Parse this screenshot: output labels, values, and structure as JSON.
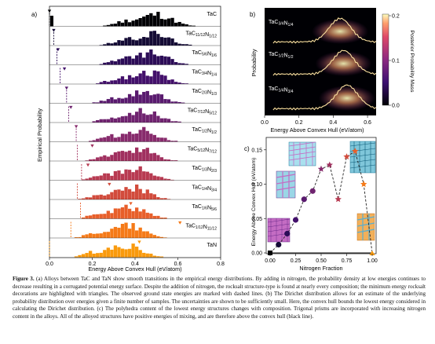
{
  "panels": {
    "a": {
      "label": "a)",
      "ylabel": "Empirical Probability",
      "xlabel": "Energy Above Convex Hull (eV/atom)",
      "xticks": [
        "0.0",
        "0.2",
        "0.4",
        "0.6",
        "0.8"
      ],
      "rows": [
        {
          "label": "TaC",
          "color": "#000004"
        },
        {
          "label": "TaC11/12N1/12",
          "color": "#140b35"
        },
        {
          "label": "TaC5/6N1/6",
          "color": "#2c0c57"
        },
        {
          "label": "TaC3/4N1/4",
          "color": "#43106b"
        },
        {
          "label": "TaC2/3N1/3",
          "color": "#591a6e"
        },
        {
          "label": "TaC7/12N5/12",
          "color": "#6f236f"
        },
        {
          "label": "TaC1/2N1/2",
          "color": "#872a6c"
        },
        {
          "label": "TaC5/12N7/12",
          "color": "#a0305f"
        },
        {
          "label": "TaC1/3N2/3",
          "color": "#b83a51"
        },
        {
          "label": "TaC1/4N3/4",
          "color": "#d24b3c"
        },
        {
          "label": "TaC1/6N5/6",
          "color": "#e85f2a"
        },
        {
          "label": "TaC1/12N11/12",
          "color": "#f57a18"
        },
        {
          "label": "TaN",
          "color": "#f99a0d"
        }
      ]
    },
    "b": {
      "label": "b)",
      "ylabel": "Probability",
      "xlabel": "Energy Above Convex Hull (eV/atom)",
      "xticks": [
        "0.0",
        "0.2",
        "0.4",
        "0.6"
      ],
      "curves": [
        "TaC3/4N1/4",
        "TaC1/2N1/2",
        "TaC1/4N3/4"
      ],
      "colorbar": {
        "label": "Posterior Probability Mass",
        "ticks": [
          "0.2",
          "0.1",
          "0.0"
        ]
      }
    },
    "c": {
      "label": "c)",
      "ylabel": "Energy Above Convex Hull (eV/atom)",
      "xlabel": "Nitrogen Fraction",
      "xticks": [
        "0.00",
        "0.25",
        "0.50",
        "0.75",
        "1.00"
      ],
      "yticks": [
        "0.00",
        "0.05",
        "0.10",
        "0.15"
      ]
    }
  },
  "chart_data": [
    {
      "type": "bar",
      "title": "",
      "xlabel": "Energy Above Convex Hull (eV/atom)",
      "ylabel": "Empirical Probability",
      "xlim": [
        0,
        0.8
      ],
      "ground_state_energies": [
        0.0,
        0.02,
        0.035,
        0.05,
        0.08,
        0.09,
        0.125,
        0.13,
        0.15,
        0.13,
        0.145,
        0.1,
        0.0
      ],
      "min_decoration_energies": [
        0.0,
        0.02,
        0.04,
        0.07,
        0.08,
        0.1,
        0.125,
        0.2,
        0.18,
        0.28,
        0.38,
        0.61,
        0.42
      ]
    },
    {
      "type": "scatter",
      "xlabel": "Nitrogen Fraction",
      "ylabel": "Energy Above Convex Hull (eV/atom)",
      "xlim": [
        0,
        1
      ],
      "ylim": [
        0,
        0.16
      ],
      "x": [
        0.0,
        0.083,
        0.167,
        0.25,
        0.333,
        0.417,
        0.5,
        0.583,
        0.667,
        0.75,
        0.833,
        0.917,
        1.0
      ],
      "y": [
        0.0,
        0.012,
        0.028,
        0.048,
        0.078,
        0.09,
        0.122,
        0.128,
        0.078,
        0.14,
        0.148,
        0.1,
        0.0
      ]
    }
  ],
  "caption": {
    "figure_label": "Figure 3.",
    "text": "(a) Alloys between TaC and TaN show smooth transitions in the empirical energy distributions. By adding in nitrogen, the probability density at low energies continues to decrease resulting in a corrugated potential energy surface. Despite the addition of nitrogen, the rocksalt structure-type is found at nearly every composition; the minimum energy rocksalt decorations are highlighted with triangles. The observed ground state energies are marked with dashed lines. (b) The Dirichet distribution allows for an estimate of the underlying probability distribution over energies given a finite number of samples. The uncertainties are shown to be sufficiently small. Here, the convex hull bounds the lowest energy considered in calculating the Dirichet distribution. (c) The polyhedra content of the lowest energy structures changes with composition. Trigonal prisms are incorporated with increasing nitrogen content in the alloys. All of the alloyed structures have positive energies of mixing, and are therefore above the convex hull (black line)."
  }
}
